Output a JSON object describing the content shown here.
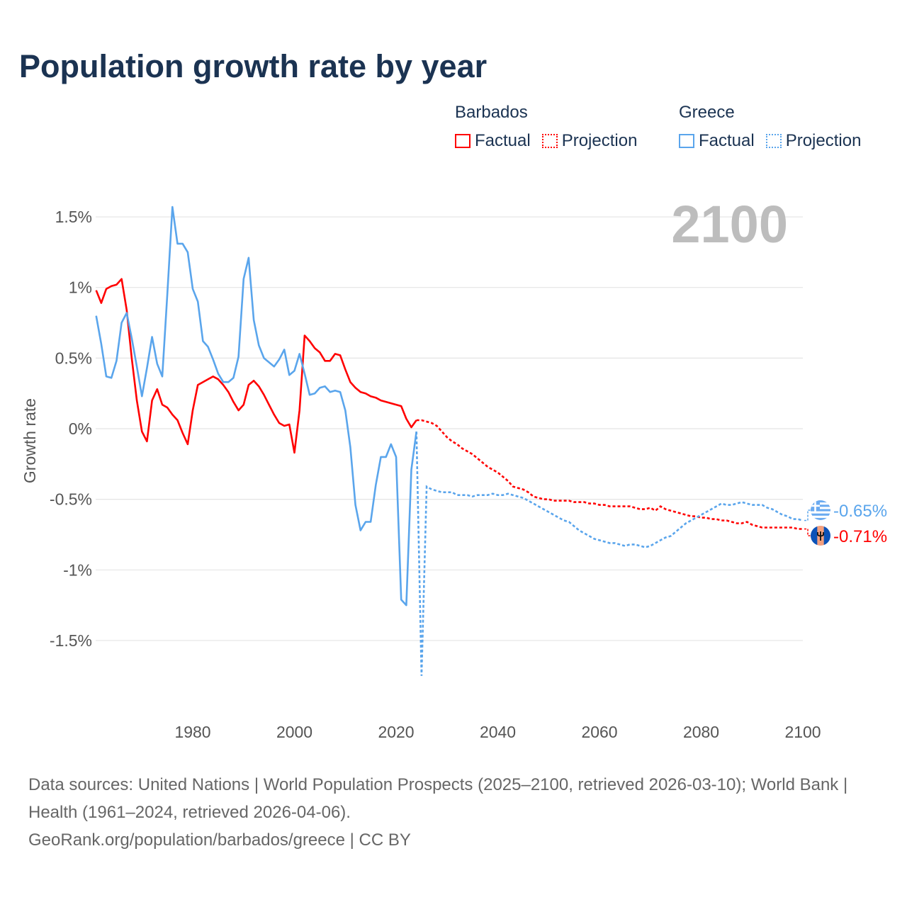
{
  "title": "Population growth rate by year",
  "legend": {
    "groups": [
      {
        "name": "Barbados",
        "color": "#ff0000",
        "factual": "Factual",
        "projection": "Projection"
      },
      {
        "name": "Greece",
        "color": "#5aa5ec",
        "factual": "Factual",
        "projection": "Projection"
      }
    ]
  },
  "current_year": "2100",
  "chart_data": {
    "type": "line",
    "title": "Population growth rate by year",
    "ylabel": "Growth rate",
    "xlabel": "",
    "xlim": [
      1961,
      2100
    ],
    "ylim": [
      -1.9,
      1.6
    ],
    "grid": true,
    "xticks": [
      {
        "v": 1980,
        "label": "1980"
      },
      {
        "v": 2000,
        "label": "2000"
      },
      {
        "v": 2020,
        "label": "2020"
      },
      {
        "v": 2040,
        "label": "2040"
      },
      {
        "v": 2060,
        "label": "2060"
      },
      {
        "v": 2080,
        "label": "2080"
      },
      {
        "v": 2100,
        "label": "2100"
      }
    ],
    "yticks": [
      {
        "v": 1.5,
        "label": "1.5%"
      },
      {
        "v": 1,
        "label": "1%"
      },
      {
        "v": 0.5,
        "label": "0.5%"
      },
      {
        "v": 0,
        "label": "0%"
      },
      {
        "v": -0.5,
        "label": "-0.5%"
      },
      {
        "v": -1,
        "label": "-1%"
      },
      {
        "v": -1.5,
        "label": "-1.5%"
      }
    ],
    "series": [
      {
        "name": "Barbados",
        "color": "#ff0000",
        "end_label": "-0.71%",
        "flag": "barbados-flag",
        "factual_start": 1961,
        "factual": [
          0.98,
          0.89,
          0.99,
          1.01,
          1.02,
          1.06,
          0.84,
          0.5,
          0.2,
          -0.02,
          -0.09,
          0.2,
          0.28,
          0.17,
          0.15,
          0.1,
          0.06,
          -0.03,
          -0.11,
          0.13,
          0.31,
          0.33,
          0.35,
          0.37,
          0.35,
          0.31,
          0.26,
          0.19,
          0.13,
          0.17,
          0.31,
          0.34,
          0.3,
          0.24,
          0.17,
          0.1,
          0.04,
          0.02,
          0.03,
          -0.17,
          0.13,
          0.66,
          0.62,
          0.57,
          0.54,
          0.48,
          0.48,
          0.53,
          0.52,
          0.42,
          0.33,
          0.29,
          0.26,
          0.25,
          0.23,
          0.22,
          0.2,
          0.19,
          0.18,
          0.17,
          0.16,
          0.07,
          0.01,
          0.06
        ],
        "projection_start": 2025,
        "projection": [
          0.06,
          0.05,
          0.04,
          0.02,
          -0.02,
          -0.06,
          -0.09,
          -0.11,
          -0.14,
          -0.16,
          -0.18,
          -0.21,
          -0.24,
          -0.27,
          -0.29,
          -0.31,
          -0.34,
          -0.37,
          -0.41,
          -0.42,
          -0.43,
          -0.45,
          -0.48,
          -0.49,
          -0.5,
          -0.5,
          -0.51,
          -0.51,
          -0.51,
          -0.51,
          -0.52,
          -0.52,
          -0.52,
          -0.53,
          -0.53,
          -0.54,
          -0.54,
          -0.55,
          -0.55,
          -0.55,
          -0.55,
          -0.55,
          -0.56,
          -0.57,
          -0.57,
          -0.56,
          -0.58,
          -0.55,
          -0.57,
          -0.58,
          -0.59,
          -0.6,
          -0.61,
          -0.62,
          -0.62,
          -0.63,
          -0.63,
          -0.64,
          -0.64,
          -0.65,
          -0.65,
          -0.66,
          -0.67,
          -0.67,
          -0.66,
          -0.68,
          -0.69,
          -0.7,
          -0.7,
          -0.7,
          -0.7,
          -0.7,
          -0.7,
          -0.7,
          -0.71,
          -0.71
        ]
      },
      {
        "name": "Greece",
        "color": "#5aa5ec",
        "end_label": "-0.65%",
        "flag": "greece-flag",
        "factual_start": 1961,
        "factual": [
          0.8,
          0.6,
          0.37,
          0.36,
          0.48,
          0.75,
          0.82,
          0.64,
          0.44,
          0.23,
          0.43,
          0.65,
          0.46,
          0.37,
          0.95,
          1.57,
          1.31,
          1.31,
          1.25,
          0.99,
          0.9,
          0.62,
          0.58,
          0.49,
          0.39,
          0.33,
          0.33,
          0.36,
          0.51,
          1.06,
          1.21,
          0.77,
          0.59,
          0.5,
          0.47,
          0.44,
          0.49,
          0.56,
          0.38,
          0.41,
          0.53,
          0.39,
          0.24,
          0.25,
          0.29,
          0.3,
          0.26,
          0.27,
          0.26,
          0.13,
          -0.13,
          -0.54,
          -0.72,
          -0.66,
          -0.66,
          -0.4,
          -0.2,
          -0.2,
          -0.11,
          -0.2,
          -1.21,
          -1.25,
          -0.29,
          -0.02
        ],
        "projection_start": 2025,
        "projection": [
          -1.75,
          -0.41,
          -0.43,
          -0.44,
          -0.45,
          -0.45,
          -0.45,
          -0.47,
          -0.47,
          -0.47,
          -0.48,
          -0.47,
          -0.47,
          -0.47,
          -0.46,
          -0.47,
          -0.47,
          -0.46,
          -0.47,
          -0.48,
          -0.49,
          -0.51,
          -0.53,
          -0.55,
          -0.57,
          -0.59,
          -0.61,
          -0.63,
          -0.65,
          -0.66,
          -0.69,
          -0.72,
          -0.74,
          -0.76,
          -0.78,
          -0.79,
          -0.8,
          -0.81,
          -0.81,
          -0.82,
          -0.83,
          -0.82,
          -0.82,
          -0.83,
          -0.84,
          -0.83,
          -0.81,
          -0.79,
          -0.77,
          -0.76,
          -0.73,
          -0.7,
          -0.67,
          -0.65,
          -0.63,
          -0.61,
          -0.59,
          -0.57,
          -0.55,
          -0.53,
          -0.54,
          -0.54,
          -0.53,
          -0.52,
          -0.53,
          -0.54,
          -0.54,
          -0.54,
          -0.56,
          -0.57,
          -0.59,
          -0.61,
          -0.62,
          -0.64,
          -0.64,
          -0.65
        ]
      }
    ]
  },
  "footer": {
    "sources": "Data sources: United Nations | World Population Prospects (2025–2100, retrieved 2026-03-10); World Bank | Health (1961–2024, retrieved 2026-04-06).",
    "credit": "GeoRank.org/population/barbados/greece | CC BY"
  }
}
